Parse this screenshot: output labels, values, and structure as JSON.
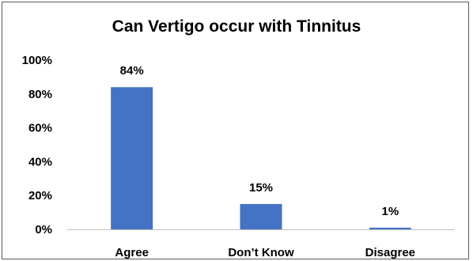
{
  "chart_data": {
    "type": "bar",
    "title": "Can Vertigo occur with Tinnitus",
    "xlabel": "",
    "ylabel": "",
    "categories": [
      "Agree",
      "Don’t Know",
      "Disagree"
    ],
    "values": [
      84,
      15,
      1
    ],
    "data_labels": [
      "84%",
      "15%",
      "1%"
    ],
    "ylim": [
      0,
      100
    ],
    "yticks": [
      0,
      20,
      40,
      60,
      80,
      100
    ],
    "ytick_labels": [
      "0%",
      "20%",
      "40%",
      "60%",
      "80%",
      "100%"
    ],
    "grid": false,
    "legend": "none",
    "bar_color": "#4472C4",
    "axis_color": "#BFBFBF"
  }
}
